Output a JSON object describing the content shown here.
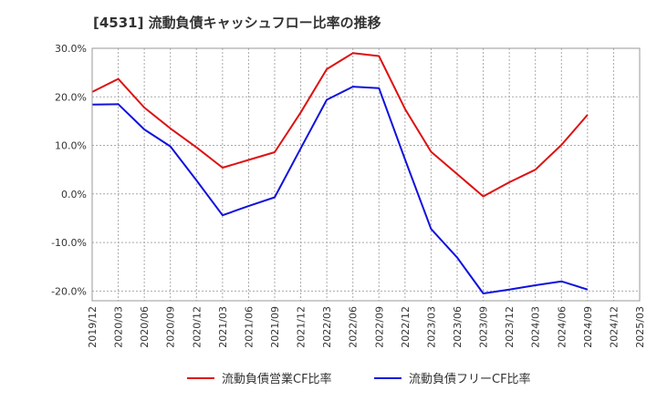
{
  "chart_data": {
    "type": "line",
    "title": "[4531]  流動負債キャッシュフロー比率の推移",
    "xlabel": "",
    "ylabel": "",
    "x": [
      "2019/12",
      "2020/03",
      "2020/06",
      "2020/09",
      "2020/12",
      "2021/03",
      "2021/06",
      "2021/09",
      "2021/12",
      "2022/03",
      "2022/06",
      "2022/09",
      "2022/12",
      "2023/03",
      "2023/06",
      "2023/09",
      "2023/12",
      "2024/03",
      "2024/06",
      "2024/09",
      "2024/12",
      "2025/03"
    ],
    "ylim": [
      -22,
      30
    ],
    "yticks": [
      30,
      20,
      10,
      0,
      -10,
      -20
    ],
    "ytick_labels": [
      "30.0%",
      "20.0%",
      "10.0%",
      "0.0%",
      "-10.0%",
      "-20.0%"
    ],
    "grid": true,
    "legend_position": "bottom",
    "series": [
      {
        "name": "流動負債営業CF比率",
        "color": "#dd1111",
        "values": [
          21.0,
          23.7,
          17.8,
          13.5,
          9.6,
          5.4,
          7.0,
          8.6,
          16.8,
          25.7,
          29.0,
          28.4,
          17.5,
          8.7,
          4.1,
          -0.5,
          2.4,
          5.0,
          10.1,
          16.3,
          null,
          null
        ]
      },
      {
        "name": "流動負債フリーCF比率",
        "color": "#1111dd",
        "values": [
          18.4,
          18.5,
          13.3,
          9.8,
          2.8,
          -4.4,
          -2.5,
          -0.7,
          9.4,
          19.4,
          22.1,
          21.8,
          7.1,
          -7.2,
          -13.1,
          -20.5,
          -19.7,
          -18.8,
          -18.0,
          -19.7,
          null,
          null
        ]
      }
    ]
  }
}
